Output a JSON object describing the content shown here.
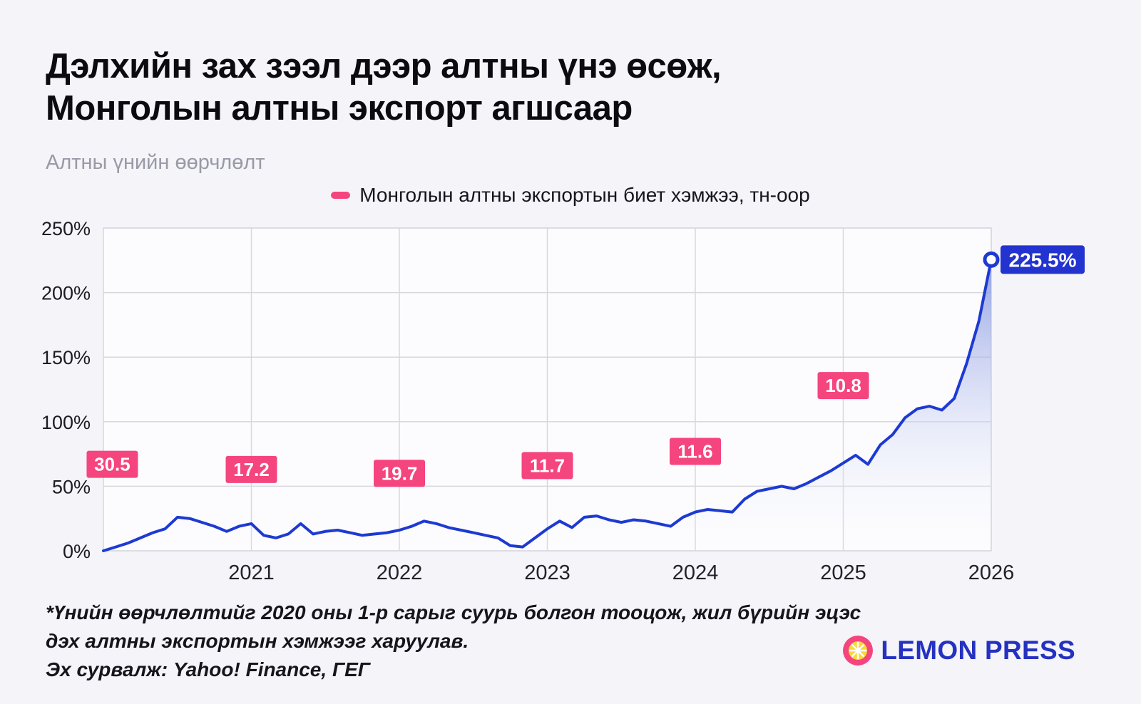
{
  "page": {
    "title_line1": "Дэлхийн зах зээл дээр алтны үнэ өсөж,",
    "title_line2": "Монголын алтны экспорт агшсаар",
    "subtitle": "Алтны үнийн өөрчлөлт",
    "footnote_line1": "*Үнийн өөрчлөлтийг 2020 оны 1-р сарыг суурь болгон тооцож, жил бүрийн эцэс",
    "footnote_line2": "дэх алтны экспортын хэмжээг харуулав.",
    "footnote_line3": "Эх сурвалж: Yahoo! Finance, ГЕГ",
    "brand_name": "LEMON PRESS"
  },
  "chart_data": {
    "type": "area",
    "title": "Алтны үнийн өөрчлөлт",
    "legend_label": "Монголын алтны экспортын биет хэмжээ, тн-оор",
    "legend_position": "top-center",
    "grid": true,
    "x_range": [
      2020,
      2026
    ],
    "points_per_year": 12,
    "values": [
      0,
      3,
      6,
      10,
      14,
      17,
      26,
      25,
      22,
      19,
      15,
      19,
      21,
      12,
      10,
      13,
      21,
      13,
      15,
      16,
      14,
      12,
      13,
      14,
      16,
      19,
      23,
      21,
      18,
      16,
      14,
      12,
      10,
      4,
      3,
      10,
      17,
      23,
      18,
      26,
      27,
      24,
      22,
      24,
      23,
      21,
      19,
      26,
      30,
      32,
      31,
      30,
      40,
      46,
      48,
      50,
      48,
      52,
      57,
      62,
      68,
      74,
      67,
      82,
      90,
      103,
      110,
      112,
      109,
      118,
      145,
      178,
      225.5
    ],
    "ylim": [
      0,
      250
    ],
    "ytick_values": [
      0,
      50,
      100,
      150,
      200,
      250
    ],
    "ytick_labels": [
      "0%",
      "50%",
      "100%",
      "150%",
      "200%",
      "250%"
    ],
    "xtick_values": [
      2021,
      2022,
      2023,
      2024,
      2025,
      2026
    ],
    "xtick_labels": [
      "2021",
      "2022",
      "2023",
      "2024",
      "2025",
      "2026"
    ],
    "end_value": 225.5,
    "end_label": "225.5%",
    "annotations": [
      {
        "x": 2020.06,
        "y": 67,
        "label": "30.5"
      },
      {
        "x": 2021,
        "y": 63,
        "label": "17.2"
      },
      {
        "x": 2022,
        "y": 60,
        "label": "19.7"
      },
      {
        "x": 2023,
        "y": 66,
        "label": "11.7"
      },
      {
        "x": 2024,
        "y": 77,
        "label": "11.6"
      },
      {
        "x": 2025,
        "y": 128,
        "label": "10.8"
      }
    ],
    "colors": {
      "line": "#1d3ad1",
      "area_top": "#7487db",
      "area_bottom": "#ffffff",
      "annotation": "#f5457e",
      "end_badge": "#2333cf",
      "grid": "#d7d7de",
      "brand": "#2531c0"
    }
  }
}
